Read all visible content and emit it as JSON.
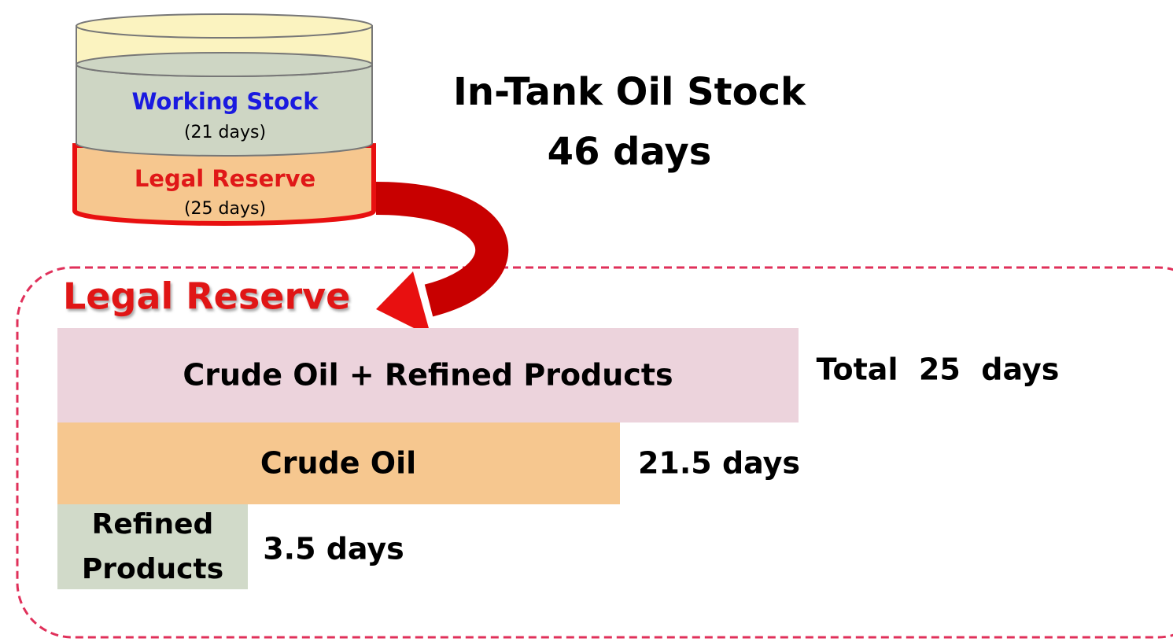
{
  "tank": {
    "title": "In-Tank Oil Stock",
    "total": "46 days",
    "layers": [
      {
        "label": "Working Stock",
        "days": "(21 days)"
      },
      {
        "label": "Legal Reserve",
        "days": "(25 days)"
      }
    ]
  },
  "legal_reserve": {
    "title": "Legal Reserve",
    "bars": [
      {
        "label": [
          "Crude Oil + Refined Products"
        ],
        "value": "Total  25  days"
      },
      {
        "label": [
          "Crude Oil"
        ],
        "value": "21.5 days"
      },
      {
        "label": [
          "Refined",
          "Products"
        ],
        "value": "3.5 days"
      }
    ]
  }
}
